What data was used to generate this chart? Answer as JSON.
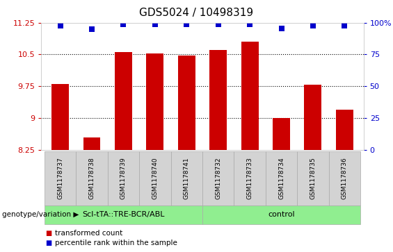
{
  "title": "GDS5024 / 10498319",
  "samples": [
    "GSM1178737",
    "GSM1178738",
    "GSM1178739",
    "GSM1178740",
    "GSM1178741",
    "GSM1178732",
    "GSM1178733",
    "GSM1178734",
    "GSM1178735",
    "GSM1178736"
  ],
  "red_values": [
    9.8,
    8.55,
    10.55,
    10.52,
    10.48,
    10.6,
    10.8,
    9.0,
    9.78,
    9.2
  ],
  "blue_values": [
    11.18,
    11.1,
    11.21,
    11.21,
    11.21,
    11.21,
    11.21,
    11.12,
    11.18,
    11.18
  ],
  "ylim": [
    8.25,
    11.25
  ],
  "yticks": [
    8.25,
    9.0,
    9.75,
    10.5,
    11.25
  ],
  "ytick_labels": [
    "8.25",
    "9",
    "9.75",
    "10.5",
    "11.25"
  ],
  "group1_label": "Scl-tTA::TRE-BCR/ABL",
  "group2_label": "control",
  "group1_count": 5,
  "group2_count": 5,
  "group_color": "#90EE90",
  "bar_color": "#CC0000",
  "dot_color": "#0000CC",
  "left_tick_color": "#CC0000",
  "right_tick_color": "#0000CC",
  "genotype_label": "genotype/variation",
  "legend_red": "transformed count",
  "legend_blue": "percentile rank within the sample",
  "bar_width": 0.55,
  "plot_bg_color": "#ffffff",
  "dotted_lines": [
    9.0,
    9.75,
    10.5
  ],
  "bar_base": 8.25,
  "dot_size": 35,
  "sample_box_color": "#d3d3d3",
  "sample_box_edge": "#aaaaaa"
}
